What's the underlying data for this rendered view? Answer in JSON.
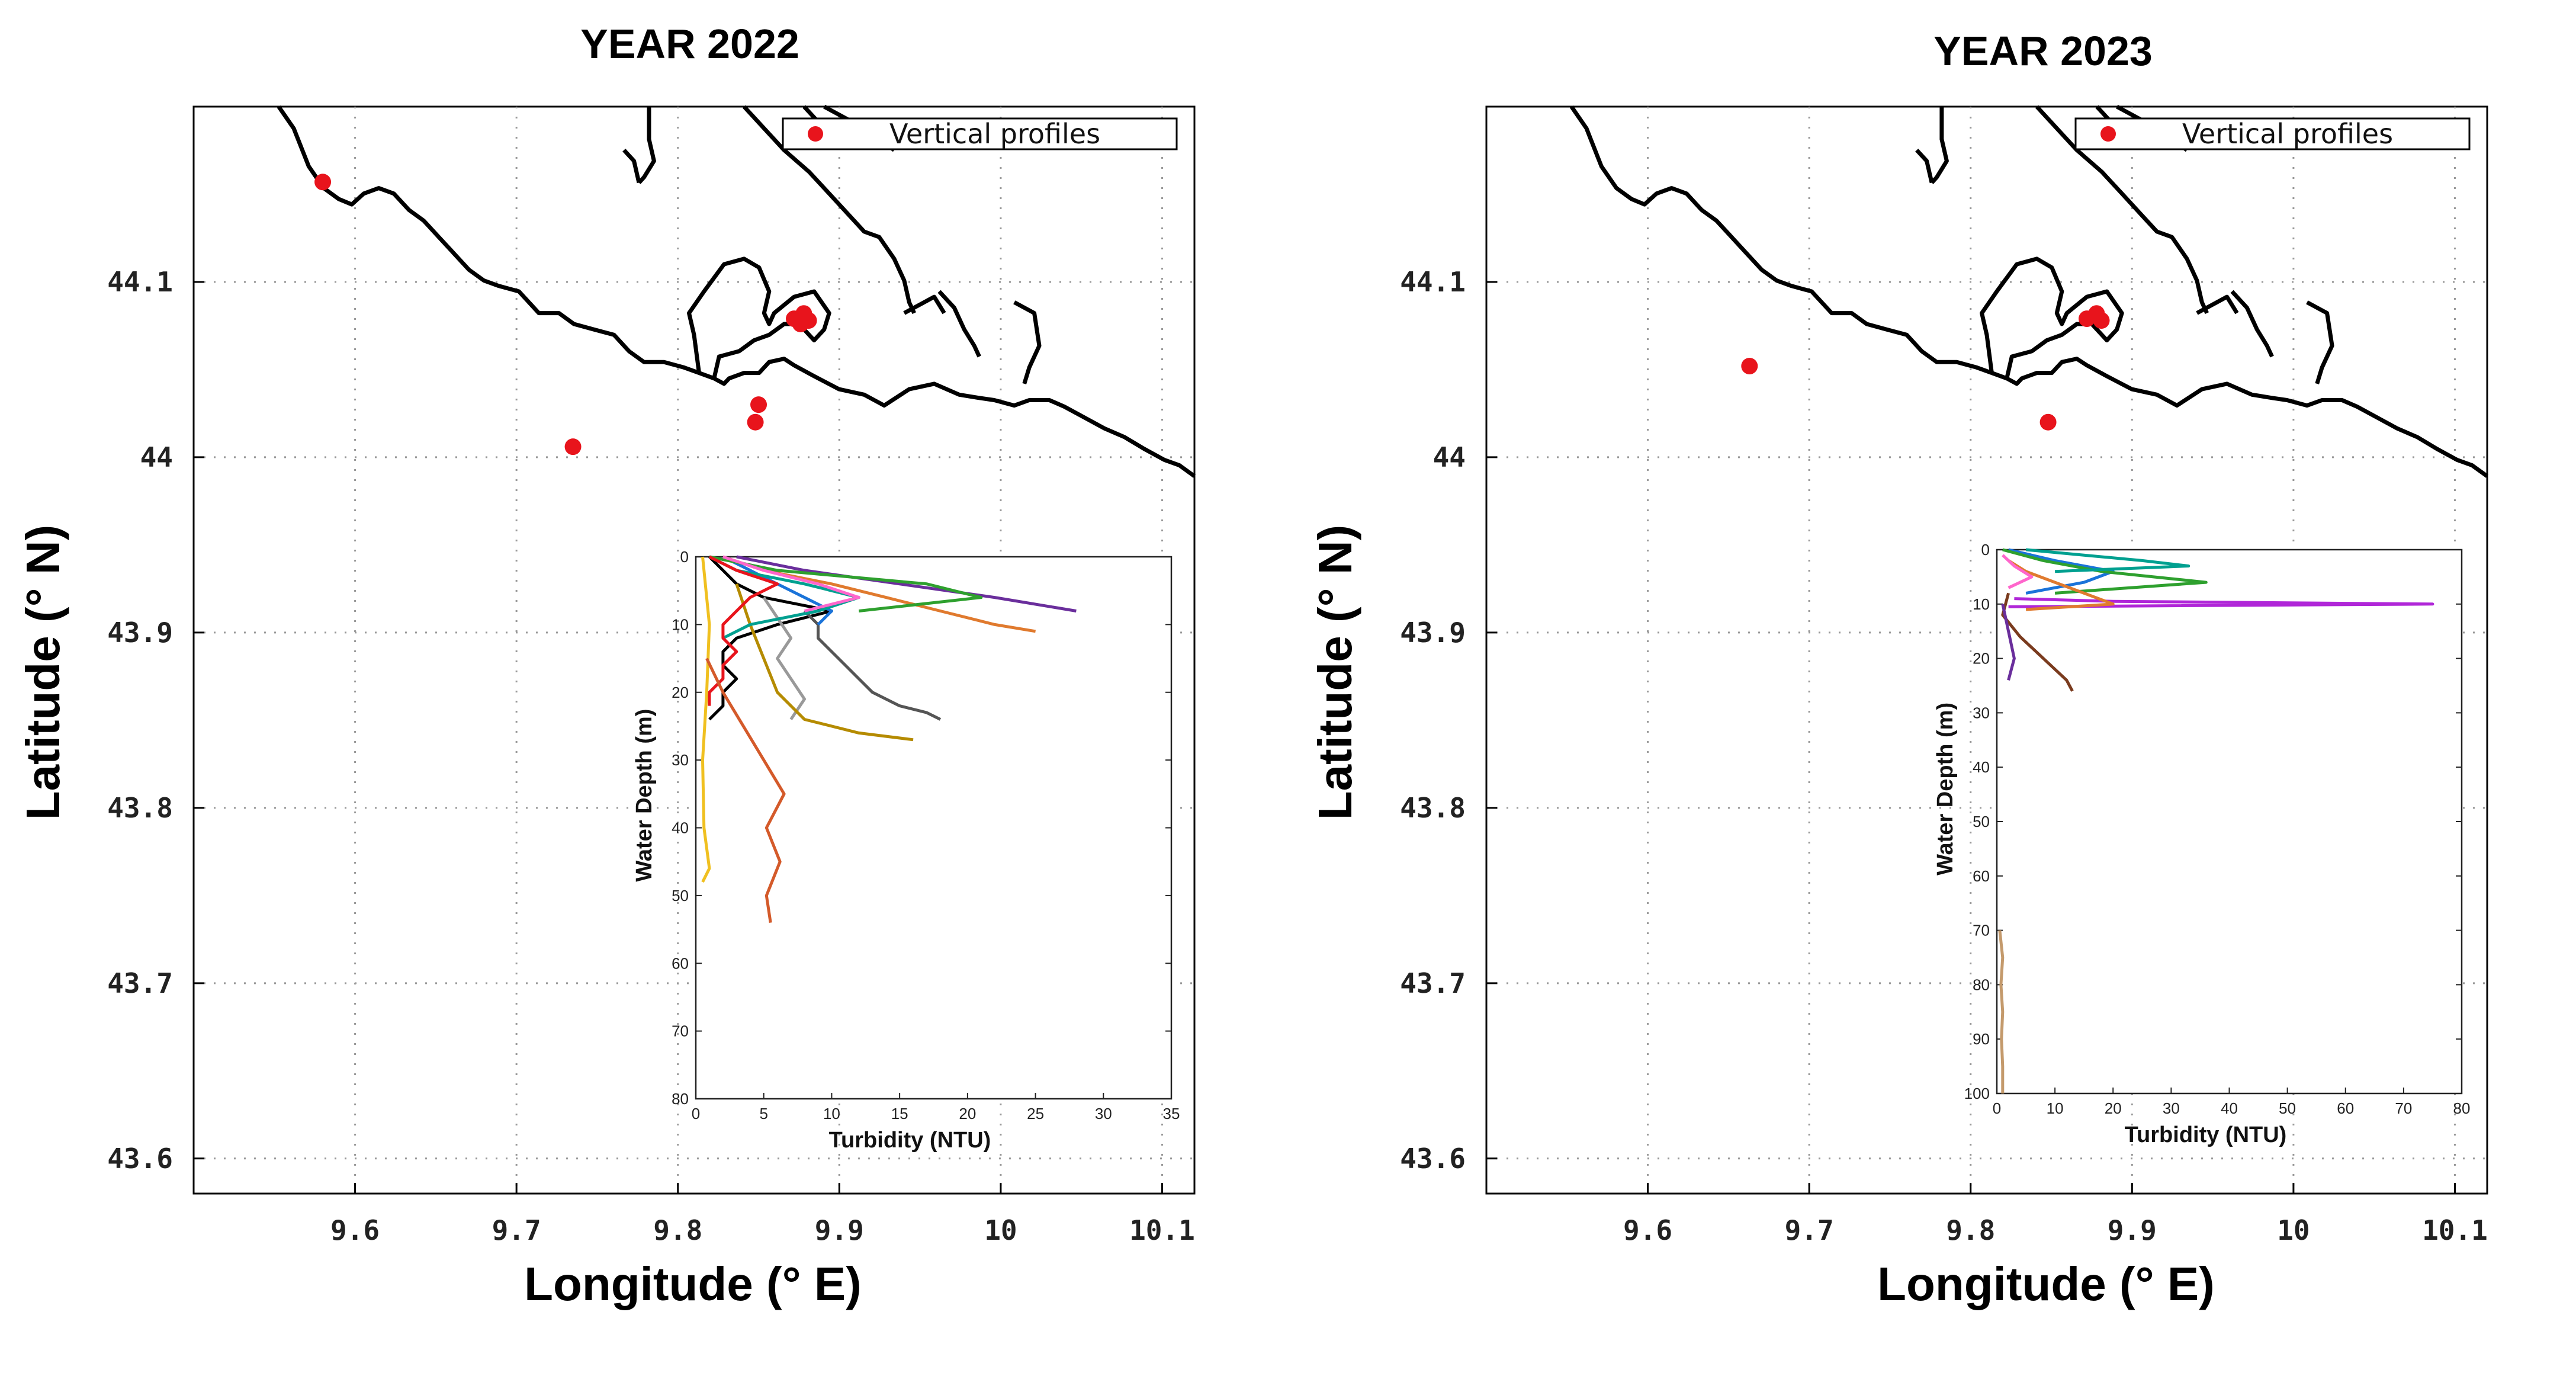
{
  "chart_data": [
    {
      "type": "scatter",
      "title": "YEAR 2022",
      "xlabel": "Longitude (° E)",
      "ylabel": "Latitude (° N)",
      "xlim": [
        9.5,
        10.12
      ],
      "ylim": [
        43.58,
        44.2
      ],
      "xticks": [
        "9.6",
        "9.7",
        "9.8",
        "9.9",
        "10",
        "10.1"
      ],
      "yticks": [
        "43.6",
        "43.7",
        "43.8",
        "43.9",
        "44",
        "44.1"
      ],
      "grid": true,
      "legend": {
        "label": "Vertical profiles",
        "position": "top-right",
        "color": "#e8141c"
      },
      "coastline_color": "#000000",
      "points": [
        {
          "lon": 9.58,
          "lat": 44.157
        },
        {
          "lon": 9.735,
          "lat": 44.006
        },
        {
          "lon": 9.872,
          "lat": 44.079
        },
        {
          "lon": 9.878,
          "lat": 44.082
        },
        {
          "lon": 9.881,
          "lat": 44.078
        },
        {
          "lon": 9.876,
          "lat": 44.076
        },
        {
          "lon": 9.85,
          "lat": 44.03
        },
        {
          "lon": 9.848,
          "lat": 44.02
        }
      ],
      "inset": {
        "type": "line",
        "xlabel": "Turbidity (NTU)",
        "ylabel": "Water Depth (m)",
        "xlim": [
          0,
          35
        ],
        "ylim": [
          0,
          80
        ],
        "xticks": [
          "0",
          "5",
          "10",
          "15",
          "20",
          "25",
          "30",
          "35"
        ],
        "yticks": [
          "0",
          "10",
          "20",
          "30",
          "40",
          "50",
          "60",
          "70",
          "80"
        ],
        "series": [
          {
            "color": "#000000",
            "depth": [
              0,
              2,
              4,
              6,
              8,
              10,
              12,
              14,
              16,
              18,
              20,
              22,
              24
            ],
            "turbidity": [
              1,
              2,
              3,
              5,
              10,
              6,
              3,
              2,
              2,
              3,
              2,
              2,
              1
            ]
          },
          {
            "color": "#555555",
            "depth": [
              8,
              10,
              12,
              14,
              16,
              18,
              20,
              22,
              23,
              24
            ],
            "turbidity": [
              8,
              9,
              9,
              10,
              11,
              12,
              13,
              15,
              17,
              18
            ]
          },
          {
            "color": "#999999",
            "depth": [
              6,
              9,
              12,
              15,
              18,
              21,
              24
            ],
            "turbidity": [
              5,
              6,
              7,
              6,
              7,
              8,
              7
            ]
          },
          {
            "color": "#b58b00",
            "depth": [
              4,
              10,
              15,
              20,
              24,
              26,
              27
            ],
            "turbidity": [
              3,
              4,
              5,
              6,
              8,
              12,
              16
            ]
          },
          {
            "color": "#e07a2e",
            "depth": [
              0,
              2,
              4,
              6,
              8,
              10,
              11
            ],
            "turbidity": [
              2,
              5,
              10,
              14,
              18,
              22,
              25
            ]
          },
          {
            "color": "#6a2e9c",
            "depth": [
              0,
              2,
              4,
              6,
              8
            ],
            "turbidity": [
              3,
              8,
              15,
              22,
              28
            ]
          },
          {
            "color": "#1a73d9",
            "depth": [
              0,
              2,
              4,
              6,
              8,
              10
            ],
            "turbidity": [
              2,
              4,
              6,
              8,
              10,
              9
            ]
          },
          {
            "color": "#00a090",
            "depth": [
              0,
              2,
              4,
              6,
              8,
              10,
              12
            ],
            "turbidity": [
              1,
              3,
              8,
              12,
              9,
              4,
              2
            ]
          },
          {
            "color": "#2ea02e",
            "depth": [
              0,
              2,
              4,
              6,
              8
            ],
            "turbidity": [
              1,
              6,
              17,
              21,
              12
            ]
          },
          {
            "color": "#e8141c",
            "depth": [
              0,
              2,
              4,
              6,
              8,
              10,
              12,
              14,
              16,
              18,
              20,
              22
            ],
            "turbidity": [
              1,
              3,
              6,
              4,
              3,
              2,
              2,
              3,
              2,
              2,
              1,
              1
            ]
          },
          {
            "color": "#ff66cc",
            "depth": [
              0,
              2,
              4,
              6,
              8
            ],
            "turbidity": [
              2,
              5,
              9,
              12,
              8
            ]
          },
          {
            "color": "#f0c020",
            "depth": [
              0,
              10,
              20,
              30,
              40,
              46,
              48
            ],
            "turbidity": [
              0.5,
              1,
              0.8,
              0.5,
              0.6,
              1,
              0.5
            ]
          },
          {
            "color": "#d45a2a",
            "depth": [
              15,
              20,
              25,
              30,
              35,
              40,
              45,
              50,
              54
            ],
            "turbidity": [
              0.8,
              2,
              3.5,
              5,
              6.5,
              5.2,
              6.2,
              5.2,
              5.5
            ]
          }
        ]
      }
    },
    {
      "type": "scatter",
      "title": "YEAR 2023",
      "xlabel": "Longitude (° E)",
      "ylabel": "Latitude (° N)",
      "xlim": [
        9.5,
        10.12
      ],
      "ylim": [
        43.58,
        44.2
      ],
      "xticks": [
        "9.6",
        "9.7",
        "9.8",
        "9.9",
        "10",
        "10.1"
      ],
      "yticks": [
        "43.6",
        "43.7",
        "43.8",
        "43.9",
        "44",
        "44.1"
      ],
      "grid": true,
      "legend": {
        "label": "Vertical profiles",
        "position": "top-right",
        "color": "#e8141c"
      },
      "coastline_color": "#000000",
      "points": [
        {
          "lon": 9.663,
          "lat": 44.052
        },
        {
          "lon": 9.872,
          "lat": 44.079
        },
        {
          "lon": 9.878,
          "lat": 44.082
        },
        {
          "lon": 9.881,
          "lat": 44.078
        },
        {
          "lon": 9.848,
          "lat": 44.02
        }
      ],
      "inset": {
        "type": "line",
        "xlabel": "Turbidity (NTU)",
        "ylabel": "Water Depth (m)",
        "xlim": [
          0,
          80
        ],
        "ylim": [
          0,
          100
        ],
        "xticks": [
          "0",
          "10",
          "20",
          "30",
          "40",
          "50",
          "60",
          "70",
          "80"
        ],
        "yticks": [
          "0",
          "10",
          "20",
          "30",
          "40",
          "50",
          "60",
          "70",
          "80",
          "90",
          "100"
        ],
        "series": [
          {
            "color": "#b026d8",
            "depth": [
              9,
              9.5,
              10,
              10.5
            ],
            "turbidity": [
              3,
              20,
              75,
              2
            ]
          },
          {
            "color": "#1a73d9",
            "depth": [
              0,
              2,
              4,
              6,
              8
            ],
            "turbidity": [
              2,
              10,
              20,
              15,
              5
            ]
          },
          {
            "color": "#2ea02e",
            "depth": [
              0,
              2,
              4,
              6,
              8
            ],
            "turbidity": [
              1,
              8,
              18,
              36,
              10
            ]
          },
          {
            "color": "#00a090",
            "depth": [
              0,
              1,
              2,
              3,
              4
            ],
            "turbidity": [
              5,
              15,
              25,
              33,
              10
            ]
          },
          {
            "color": "#e07a2e",
            "depth": [
              2,
              4,
              6,
              8,
              10,
              11
            ],
            "turbidity": [
              2,
              5,
              10,
              15,
              20,
              5
            ]
          },
          {
            "color": "#ff66cc",
            "depth": [
              1,
              3,
              5,
              7
            ],
            "turbidity": [
              1,
              3,
              6,
              2
            ]
          },
          {
            "color": "#7a3b1e",
            "depth": [
              8,
              12,
              16,
              20,
              24,
              26
            ],
            "turbidity": [
              2,
              1,
              4,
              8,
              12,
              13
            ]
          },
          {
            "color": "#6a2e9c",
            "depth": [
              10,
              15,
              20,
              24
            ],
            "turbidity": [
              1,
              2,
              3,
              2
            ]
          },
          {
            "color": "#c49a6c",
            "depth": [
              70,
              75,
              80,
              85,
              90,
              95,
              100
            ],
            "turbidity": [
              0.5,
              1,
              0.7,
              1,
              0.8,
              1,
              1
            ]
          }
        ]
      }
    }
  ]
}
